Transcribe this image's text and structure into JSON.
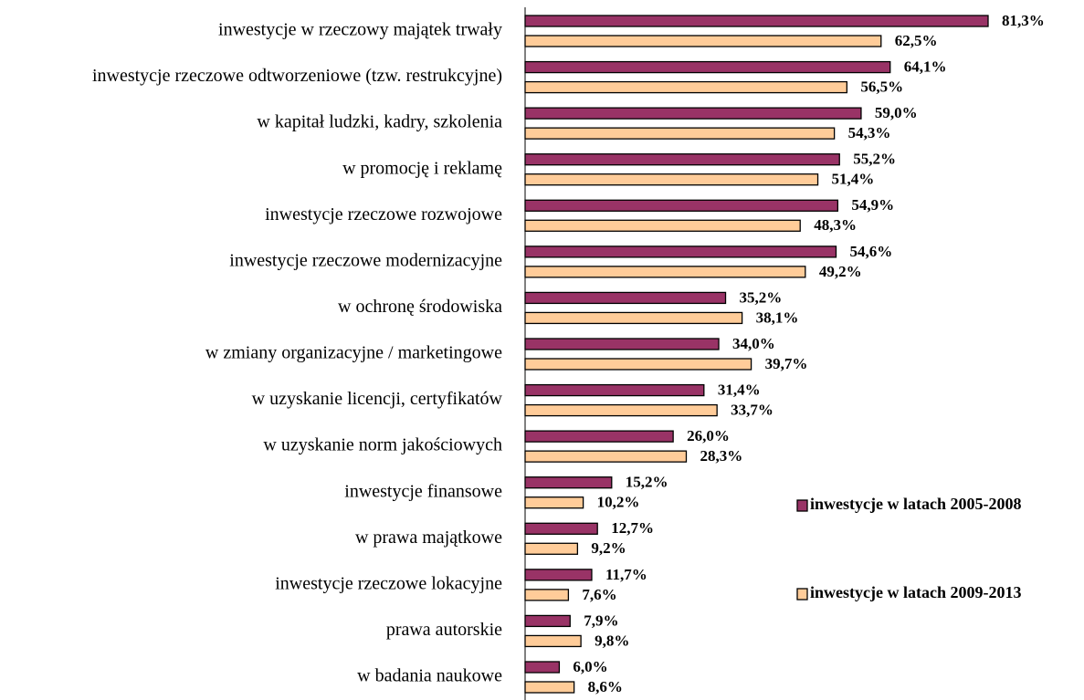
{
  "chart_data": {
    "type": "bar",
    "orientation": "horizontal",
    "legend": "right",
    "categories": [
      "inwestycje w rzeczowy majątek trwały",
      "inwestycje rzeczowe odtworzeniowe (tzw. restrukcyjne)",
      "w kapitał ludzki, kadry, szkolenia",
      "w promocję i reklamę",
      "inwestycje rzeczowe rozwojowe",
      "inwestycje rzeczowe modernizacyjne",
      "w ochronę środowiska",
      "w zmiany organizacyjne / marketingowe",
      "w uzyskanie licencji, certyfikatów",
      "w uzyskanie norm jakościowych",
      "inwestycje finansowe",
      "w prawa majątkowe",
      "inwestycje rzeczowe lokacyjne",
      "prawa autorskie",
      "w badania naukowe"
    ],
    "series": [
      {
        "name": "inwestycje w latach 2005-2008",
        "color": "#993366",
        "values": [
          81.3,
          64.1,
          59.0,
          55.2,
          54.9,
          54.6,
          35.2,
          34.0,
          31.4,
          26.0,
          15.2,
          12.7,
          11.7,
          7.9,
          6.0
        ],
        "value_labels": [
          "81,3%",
          "64,1%",
          "59,0%",
          "55,2%",
          "54,9%",
          "54,6%",
          "35,2%",
          "34,0%",
          "31,4%",
          "26,0%",
          "15,2%",
          "12,7%",
          "11,7%",
          "7,9%",
          "6,0%"
        ]
      },
      {
        "name": "inwestycje w latach 2009-2013",
        "color": "#FFCC99",
        "values": [
          62.5,
          56.5,
          54.3,
          51.4,
          48.3,
          49.2,
          38.1,
          39.7,
          33.7,
          28.3,
          10.2,
          9.2,
          7.6,
          9.8,
          8.6
        ],
        "value_labels": [
          "62,5%",
          "56,5%",
          "54,3%",
          "51,4%",
          "48,3%",
          "49,2%",
          "38,1%",
          "39,7%",
          "33,7%",
          "28,3%",
          "10,2%",
          "9,2%",
          "7,6%",
          "9,8%",
          "8,6%"
        ]
      }
    ]
  }
}
